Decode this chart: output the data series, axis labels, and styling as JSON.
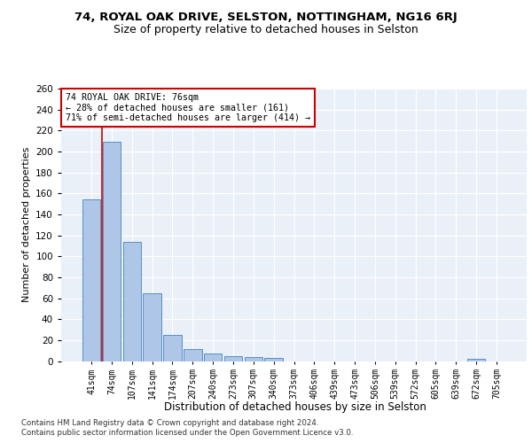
{
  "title1": "74, ROYAL OAK DRIVE, SELSTON, NOTTINGHAM, NG16 6RJ",
  "title2": "Size of property relative to detached houses in Selston",
  "xlabel": "Distribution of detached houses by size in Selston",
  "ylabel": "Number of detached properties",
  "bar_labels": [
    "41sqm",
    "74sqm",
    "107sqm",
    "141sqm",
    "174sqm",
    "207sqm",
    "240sqm",
    "273sqm",
    "307sqm",
    "340sqm",
    "373sqm",
    "406sqm",
    "439sqm",
    "473sqm",
    "506sqm",
    "539sqm",
    "572sqm",
    "605sqm",
    "639sqm",
    "672sqm",
    "705sqm"
  ],
  "bar_values": [
    154,
    209,
    114,
    65,
    25,
    11,
    7,
    5,
    4,
    3,
    0,
    0,
    0,
    0,
    0,
    0,
    0,
    0,
    0,
    2,
    0
  ],
  "bar_color": "#aec6e8",
  "bar_edge_color": "#5b8ec4",
  "property_line_x": 1,
  "annotation_line1": "74 ROYAL OAK DRIVE: 76sqm",
  "annotation_line2": "← 28% of detached houses are smaller (161)",
  "annotation_line3": "71% of semi-detached houses are larger (414) →",
  "annotation_box_color": "#ffffff",
  "annotation_box_edge": "#cc0000",
  "property_line_color": "#cc0000",
  "ylim": [
    0,
    260
  ],
  "yticks": [
    0,
    20,
    40,
    60,
    80,
    100,
    120,
    140,
    160,
    180,
    200,
    220,
    240,
    260
  ],
  "footer1": "Contains HM Land Registry data © Crown copyright and database right 2024.",
  "footer2": "Contains public sector information licensed under the Open Government Licence v3.0.",
  "bg_color": "#eaf0f8",
  "grid_color": "#ffffff",
  "title1_fontsize": 9.5,
  "title2_fontsize": 9
}
